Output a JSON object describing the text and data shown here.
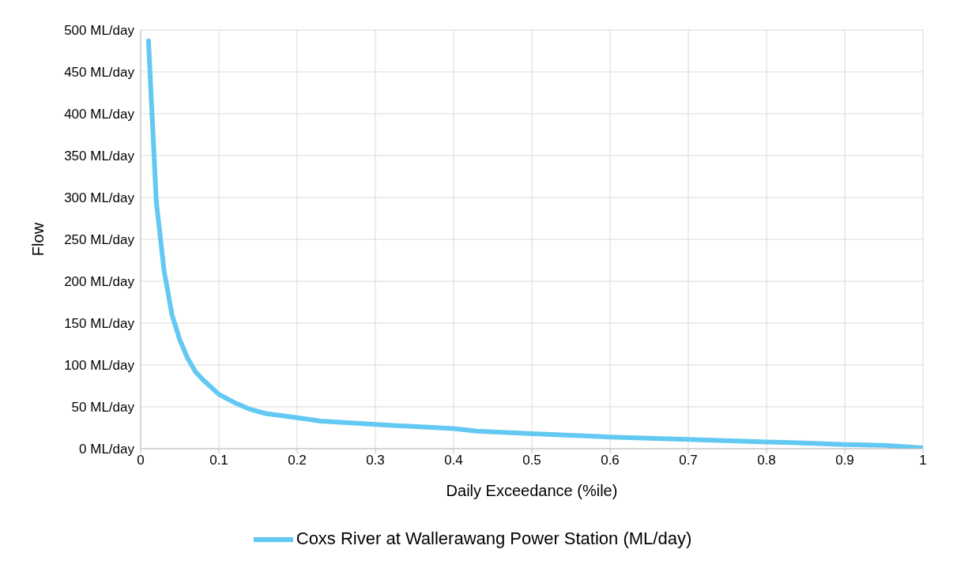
{
  "chart_data": {
    "type": "line",
    "xlabel": "Daily Exceedance (%ile)",
    "ylabel": "Flow",
    "x": [
      0.01,
      0.02,
      0.03,
      0.04,
      0.05,
      0.06,
      0.07,
      0.08,
      0.1,
      0.12,
      0.14,
      0.16,
      0.2,
      0.23,
      0.3,
      0.4,
      0.43,
      0.5,
      0.6,
      0.7,
      0.8,
      0.84,
      0.9,
      0.95,
      1
    ],
    "series": [
      {
        "name": "Coxs River at Wallerawang Power Station (ML/day)",
        "color": "#63c9f2",
        "values": [
          487,
          295,
          212,
          160,
          130,
          108,
          92,
          82,
          65,
          55,
          47,
          42,
          37,
          33,
          29,
          24,
          21,
          18,
          14,
          11,
          8,
          7,
          5,
          4,
          1
        ]
      }
    ],
    "xlim": [
      0,
      1
    ],
    "xticks": [
      0,
      0.1,
      0.2,
      0.3,
      0.4,
      0.5,
      0.6,
      0.7,
      0.8,
      0.9,
      1
    ],
    "ylim": [
      0,
      500
    ],
    "yticks": [
      {
        "value": 0,
        "label": "0 ML/day"
      },
      {
        "value": 50,
        "label": "50 ML/day"
      },
      {
        "value": 100,
        "label": "100 ML/day"
      },
      {
        "value": 150,
        "label": "150 ML/day"
      },
      {
        "value": 200,
        "label": "200 ML/day"
      },
      {
        "value": 250,
        "label": "250 ML/day"
      },
      {
        "value": 300,
        "label": "300 ML/day"
      },
      {
        "value": 350,
        "label": "350 ML/day"
      },
      {
        "value": 400,
        "label": "400 ML/day"
      },
      {
        "value": 450,
        "label": "450 ML/day"
      },
      {
        "value": 500,
        "label": "500 ML/day"
      }
    ],
    "grid": true,
    "legend": "bottom",
    "marker": "none",
    "line_style": "solid"
  }
}
